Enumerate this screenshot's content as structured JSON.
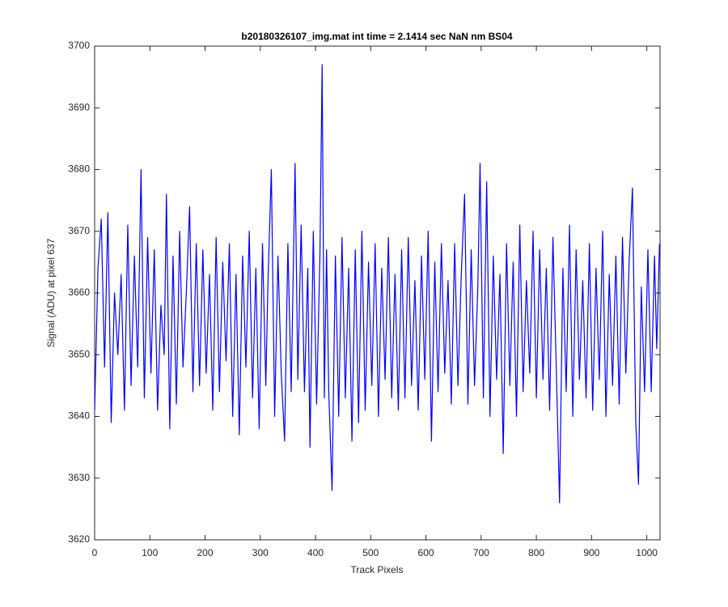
{
  "chart_data": {
    "type": "line",
    "title": "b20180326107_img.mat int time = 2.1414 sec  NaN nm BS04",
    "x_label": "Track Pixels",
    "y_label": "Signal (ADU) at pixel 637",
    "xlim": [
      0,
      1024
    ],
    "ylim": [
      3620,
      3700
    ],
    "xticks": [
      0,
      100,
      200,
      300,
      400,
      500,
      600,
      700,
      800,
      900,
      1000
    ],
    "yticks": [
      3620,
      3630,
      3640,
      3650,
      3660,
      3670,
      3680,
      3690,
      3700
    ],
    "grid": false,
    "x": [
      0,
      6,
      12,
      18,
      24,
      30,
      36,
      42,
      48,
      54,
      60,
      66,
      72,
      78,
      84,
      90,
      96,
      102,
      108,
      114,
      120,
      126,
      130,
      136,
      142,
      148,
      154,
      160,
      166,
      172,
      178,
      184,
      190,
      196,
      202,
      208,
      214,
      220,
      226,
      232,
      238,
      244,
      250,
      256,
      262,
      268,
      274,
      280,
      286,
      292,
      298,
      304,
      310,
      314,
      320,
      326,
      332,
      338,
      344,
      350,
      356,
      363,
      368,
      374,
      380,
      386,
      390,
      396,
      402,
      408,
      412,
      416,
      420,
      424,
      430,
      436,
      442,
      448,
      454,
      460,
      466,
      472,
      478,
      484,
      490,
      496,
      502,
      508,
      514,
      520,
      526,
      532,
      538,
      544,
      550,
      556,
      562,
      568,
      574,
      580,
      586,
      592,
      598,
      604,
      610,
      616,
      622,
      628,
      634,
      640,
      646,
      652,
      658,
      664,
      670,
      676,
      682,
      688,
      694,
      698,
      704,
      710,
      716,
      722,
      728,
      734,
      740,
      746,
      752,
      758,
      764,
      770,
      776,
      782,
      788,
      794,
      800,
      806,
      812,
      818,
      824,
      830,
      836,
      842,
      848,
      854,
      860,
      866,
      872,
      878,
      884,
      890,
      896,
      902,
      908,
      914,
      920,
      926,
      932,
      938,
      944,
      950,
      956,
      962,
      968,
      974,
      980,
      985,
      990,
      996,
      1002,
      1008,
      1014,
      1018,
      1023
    ],
    "series": [
      {
        "color": "#0000ff",
        "values": [
          3641,
          3664,
          3672,
          3648,
          3673,
          3639,
          3660,
          3650,
          3663,
          3641,
          3671,
          3645,
          3666,
          3648,
          3680,
          3643,
          3669,
          3647,
          3667,
          3641,
          3658,
          3650,
          3676,
          3638,
          3666,
          3642,
          3670,
          3648,
          3660,
          3674,
          3644,
          3668,
          3645,
          3667,
          3647,
          3663,
          3641,
          3669,
          3644,
          3665,
          3649,
          3668,
          3640,
          3663,
          3637,
          3666,
          3648,
          3670,
          3643,
          3664,
          3638,
          3668,
          3645,
          3662,
          3680,
          3640,
          3666,
          3647,
          3636,
          3668,
          3644,
          3681,
          3646,
          3671,
          3644,
          3664,
          3635,
          3670,
          3642,
          3666,
          3697,
          3643,
          3667,
          3644,
          3628,
          3666,
          3640,
          3669,
          3643,
          3664,
          3636,
          3667,
          3639,
          3670,
          3641,
          3665,
          3645,
          3668,
          3640,
          3664,
          3646,
          3669,
          3643,
          3663,
          3641,
          3667,
          3643,
          3669,
          3645,
          3662,
          3641,
          3666,
          3646,
          3670,
          3636,
          3665,
          3644,
          3668,
          3647,
          3662,
          3642,
          3668,
          3645,
          3663,
          3676,
          3642,
          3667,
          3645,
          3661,
          3681,
          3643,
          3678,
          3640,
          3666,
          3646,
          3663,
          3634,
          3668,
          3645,
          3665,
          3640,
          3671,
          3644,
          3662,
          3647,
          3670,
          3643,
          3667,
          3646,
          3664,
          3641,
          3669,
          3648,
          3626,
          3664,
          3644,
          3671,
          3640,
          3667,
          3646,
          3662,
          3643,
          3668,
          3641,
          3664,
          3646,
          3670,
          3640,
          3663,
          3645,
          3666,
          3642,
          3669,
          3647,
          3665,
          3677,
          3639,
          3629,
          3661,
          3644,
          3667,
          3644,
          3666,
          3651,
          3668
        ]
      }
    ]
  }
}
